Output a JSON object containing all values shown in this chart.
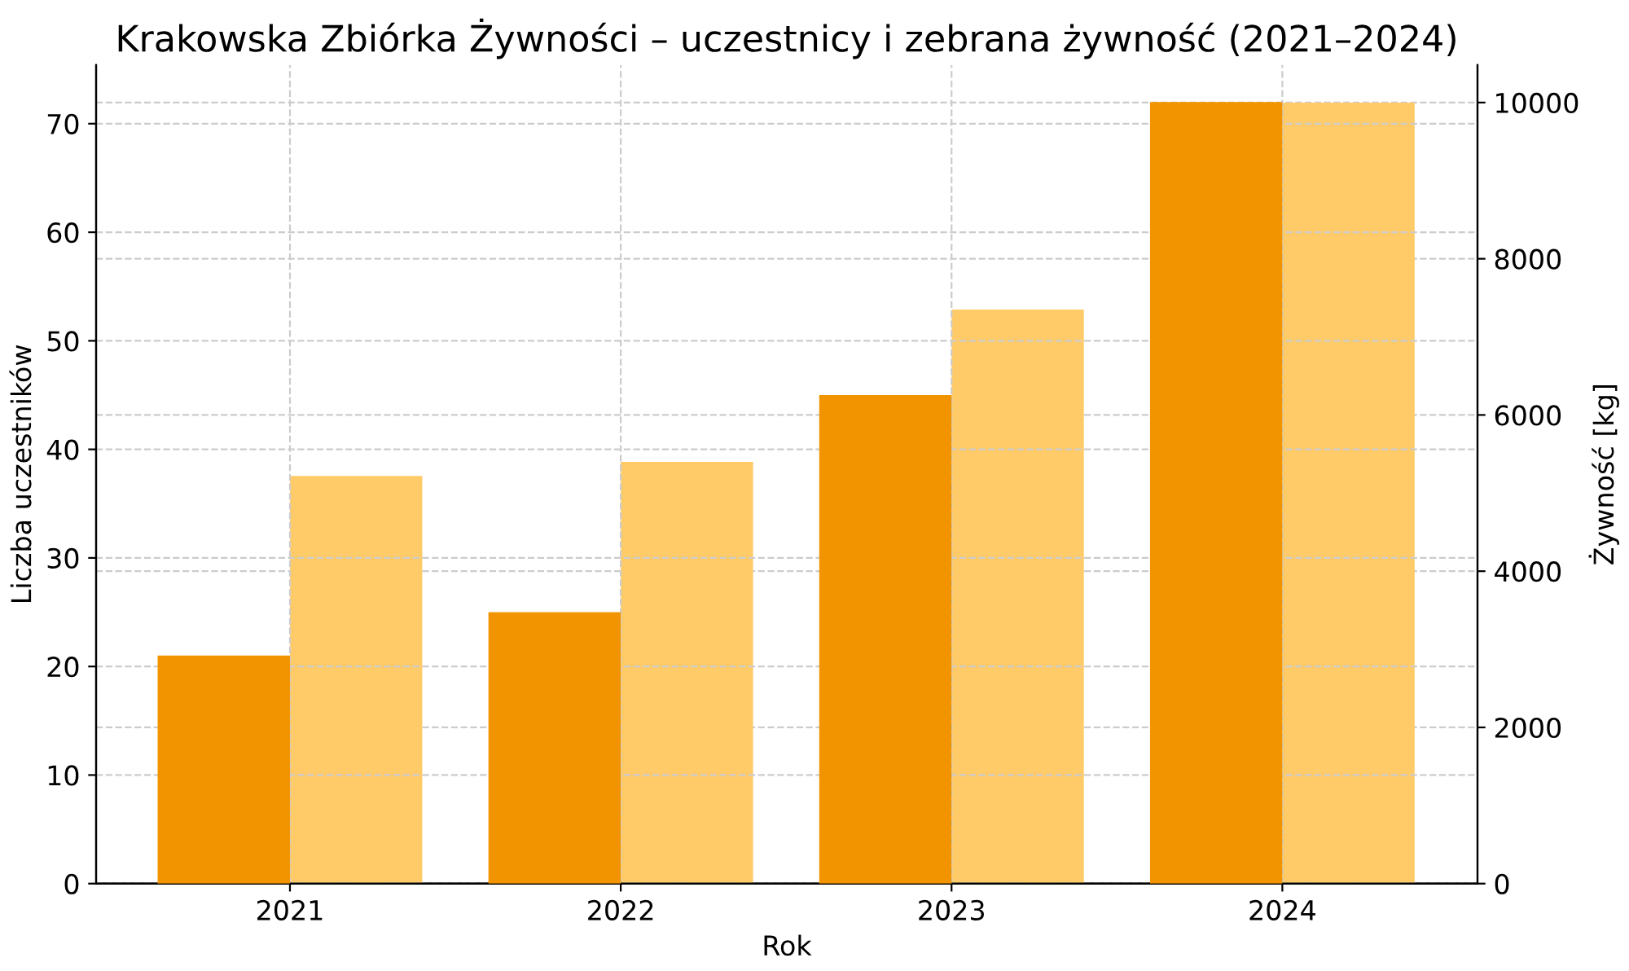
{
  "chart_data": {
    "type": "bar",
    "title": "Krakowska Zbiórka Żywności – uczestnicy i zebrana żywność (2021–2024)",
    "xlabel": "Rok",
    "ylabel": "Liczba uczestników",
    "y2label": "Żywność [kg]",
    "categories": [
      "2021",
      "2022",
      "2023",
      "2024"
    ],
    "series": [
      {
        "color": "#f29400",
        "values": [
          21,
          25,
          45,
          72
        ]
      },
      {
        "color": "#ffcb69",
        "values": [
          5220,
          5400,
          7350,
          10000
        ],
        "axis": "y2"
      }
    ],
    "ylim": [
      0,
      75.4
    ],
    "yticks": [
      0,
      10,
      20,
      30,
      40,
      50,
      60,
      70
    ],
    "y2lim": [
      0,
      10480
    ],
    "y2ticks": [
      0,
      2000,
      4000,
      6000,
      8000,
      10000
    ],
    "grid": true
  }
}
